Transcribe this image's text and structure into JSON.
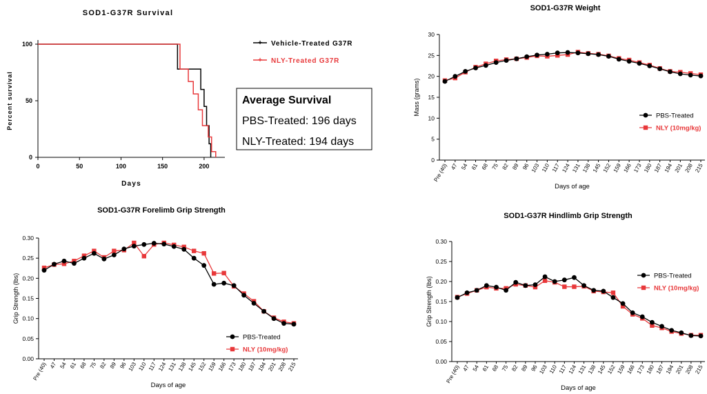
{
  "colors": {
    "pbs": "#000000",
    "nly": "#e8383a",
    "axis": "#000000"
  },
  "chart_data": [
    {
      "id": "survival",
      "type": "line",
      "step": true,
      "title": "SOD1-G37R Survival",
      "xlabel": "Days",
      "ylabel": "Percent survival",
      "xlim": [
        0,
        225
      ],
      "ylim": [
        0,
        100
      ],
      "xticks": [
        "0",
        "50",
        "100",
        "150",
        "200"
      ],
      "yticks": [
        "0",
        "50",
        "100"
      ],
      "legend_position": "right",
      "series": [
        {
          "name": "Vehicle-Treated G37R",
          "color": "#000000",
          "x": [
            0,
            165,
            168,
            190,
            196,
            200,
            203,
            206,
            208
          ],
          "y": [
            100,
            100,
            78,
            78,
            60,
            45,
            28,
            12,
            0
          ]
        },
        {
          "name": "NLY-Treated G37R",
          "color": "#e8383a",
          "x": [
            0,
            166,
            171,
            181,
            187,
            193,
            198,
            205,
            209,
            214
          ],
          "y": [
            100,
            100,
            78,
            67,
            56,
            42,
            28,
            18,
            5,
            0
          ]
        }
      ],
      "annotation": {
        "heading": "Average Survival",
        "lines": [
          "PBS-Treated: 196 days",
          "NLY-Treated: 194 days"
        ]
      }
    },
    {
      "id": "weight",
      "type": "line",
      "title": "SOD1-G37R Weight",
      "xlabel": "Days of age",
      "ylabel": "Mass (grams)",
      "ylim": [
        0,
        30
      ],
      "yticks": [
        "0",
        "5",
        "10",
        "15",
        "20",
        "25",
        "30"
      ],
      "legend_position": "bottom-right",
      "categories": [
        "Pre (40)",
        "47",
        "54",
        "61",
        "68",
        "75",
        "82",
        "89",
        "96",
        "103",
        "110",
        "117",
        "124",
        "131",
        "138",
        "145",
        "152",
        "159",
        "166",
        "173",
        "180",
        "187",
        "194",
        "201",
        "208",
        "215"
      ],
      "series": [
        {
          "name": "PBS-Treated",
          "color": "#000000",
          "values": [
            18.8,
            20.0,
            21.2,
            22.0,
            22.6,
            23.3,
            23.8,
            24.2,
            24.7,
            25.1,
            25.3,
            25.6,
            25.7,
            25.6,
            25.4,
            25.2,
            24.8,
            24.1,
            23.6,
            23.1,
            22.5,
            21.8,
            21.1,
            20.6,
            20.3,
            20.1
          ]
        },
        {
          "name": "NLY (10mg/kg)",
          "color": "#e8383a",
          "values": [
            19.0,
            19.6,
            21.0,
            22.2,
            23.0,
            23.7,
            24.0,
            24.2,
            24.5,
            24.9,
            24.8,
            25.0,
            25.2,
            25.8,
            25.5,
            25.3,
            24.9,
            24.3,
            23.9,
            23.3,
            22.7,
            21.9,
            21.2,
            21.0,
            20.7,
            20.4
          ]
        }
      ]
    },
    {
      "id": "forelimb",
      "type": "line",
      "title": "SOD1-G37R Forelimb Grip Strength",
      "xlabel": "Days of age",
      "ylabel": "Grip Strength (lbs)",
      "ylim": [
        0,
        0.3
      ],
      "yticks": [
        "0.00",
        "0.05",
        "0.10",
        "0.15",
        "0.20",
        "0.25",
        "0.30"
      ],
      "legend_position": "bottom-right",
      "categories": [
        "Pre (40)",
        "47",
        "54",
        "61",
        "68",
        "75",
        "82",
        "89",
        "96",
        "103",
        "110",
        "117",
        "124",
        "131",
        "138",
        "145",
        "152",
        "159",
        "166",
        "173",
        "180",
        "187",
        "194",
        "201",
        "208",
        "215"
      ],
      "series": [
        {
          "name": "PBS-Treated",
          "color": "#000000",
          "values": [
            0.22,
            0.235,
            0.243,
            0.237,
            0.25,
            0.262,
            0.248,
            0.258,
            0.273,
            0.28,
            0.284,
            0.287,
            0.285,
            0.279,
            0.272,
            0.25,
            0.232,
            0.185,
            0.188,
            0.182,
            0.158,
            0.138,
            0.118,
            0.1,
            0.088,
            0.086
          ]
        },
        {
          "name": "NLY (10mg/kg)",
          "color": "#e8383a",
          "values": [
            0.226,
            0.234,
            0.236,
            0.243,
            0.256,
            0.268,
            0.252,
            0.268,
            0.27,
            0.288,
            0.255,
            0.284,
            0.288,
            0.283,
            0.278,
            0.268,
            0.262,
            0.212,
            0.213,
            0.18,
            0.162,
            0.143,
            0.118,
            0.102,
            0.092,
            0.088
          ]
        }
      ]
    },
    {
      "id": "hindlimb",
      "type": "line",
      "title": "SOD1-G37R Hindlimb Grip Strength",
      "xlabel": "Days of age",
      "ylabel": "Grip Strength (lbs)",
      "ylim": [
        0,
        0.3
      ],
      "yticks": [
        "0.00",
        "0.05",
        "0.10",
        "0.15",
        "0.20",
        "0.25",
        "0.30"
      ],
      "legend_position": "top-right",
      "categories": [
        "Pre (40)",
        "47",
        "54",
        "61",
        "68",
        "75",
        "82",
        "89",
        "96",
        "103",
        "110",
        "117",
        "124",
        "131",
        "138",
        "145",
        "152",
        "159",
        "166",
        "173",
        "180",
        "187",
        "194",
        "201",
        "208",
        "215"
      ],
      "series": [
        {
          "name": "PBS-Treated",
          "color": "#000000",
          "values": [
            0.16,
            0.172,
            0.178,
            0.19,
            0.186,
            0.178,
            0.198,
            0.19,
            0.192,
            0.212,
            0.2,
            0.204,
            0.21,
            0.19,
            0.178,
            0.176,
            0.16,
            0.145,
            0.122,
            0.112,
            0.098,
            0.088,
            0.078,
            0.072,
            0.065,
            0.064
          ]
        },
        {
          "name": "NLY (10mg/kg)",
          "color": "#e8383a",
          "values": [
            0.161,
            0.17,
            0.178,
            0.186,
            0.183,
            0.183,
            0.193,
            0.19,
            0.186,
            0.202,
            0.198,
            0.187,
            0.187,
            0.188,
            0.176,
            0.174,
            0.172,
            0.138,
            0.118,
            0.108,
            0.09,
            0.084,
            0.075,
            0.07,
            0.066,
            0.066
          ]
        }
      ]
    }
  ]
}
